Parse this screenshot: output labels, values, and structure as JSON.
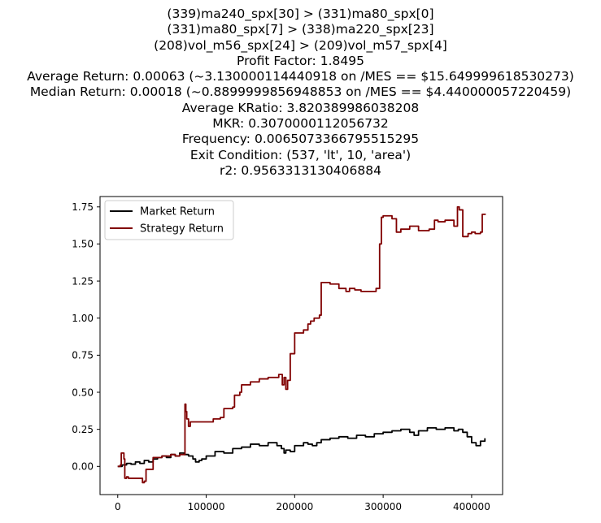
{
  "chart_data": {
    "type": "line",
    "title_lines": [
      "(339)ma240_spx[30] > (331)ma80_spx[0]",
      "(331)ma80_spx[7] > (338)ma220_spx[23]",
      "(208)vol_m56_spx[24] > (209)vol_m57_spx[4]",
      "Profit Factor: 1.8495",
      "Average Return: 0.00063 (~3.130000114440918 on /MES == $15.649999618530273)",
      "Median Return: 0.00018 (~0.8899999856948853 on /MES == $4.440000057220459)",
      "Average KRatio: 3.820389986038208",
      "MKR: 0.3070000112056732",
      "Frequency: 0.0065073366795515295",
      "Exit Condition: (537, 'lt', 10, 'area')",
      "r2: 0.9563313130406884"
    ],
    "xlim": [
      -20000,
      435000
    ],
    "ylim": [
      -0.19,
      1.82
    ],
    "x_ticks": [
      0,
      100000,
      200000,
      300000,
      400000
    ],
    "x_tick_labels": [
      "0",
      "100000",
      "200000",
      "300000",
      "400000"
    ],
    "y_ticks": [
      0.0,
      0.25,
      0.5,
      0.75,
      1.0,
      1.25,
      1.5,
      1.75
    ],
    "y_tick_labels": [
      "0.00",
      "0.25",
      "0.50",
      "0.75",
      "1.00",
      "1.25",
      "1.50",
      "1.75"
    ],
    "grid": false,
    "legend": "top-left",
    "series": [
      {
        "name": "Market Return",
        "color": "#000000",
        "x": [
          0,
          5000,
          10000,
          15000,
          20000,
          25000,
          30000,
          35000,
          40000,
          45000,
          50000,
          55000,
          60000,
          65000,
          70000,
          75000,
          80000,
          85000,
          88000,
          92000,
          95000,
          100000,
          110000,
          120000,
          130000,
          140000,
          150000,
          160000,
          170000,
          180000,
          185000,
          188000,
          190000,
          195000,
          200000,
          210000,
          215000,
          220000,
          225000,
          230000,
          240000,
          250000,
          260000,
          270000,
          280000,
          290000,
          300000,
          310000,
          320000,
          330000,
          335000,
          340000,
          350000,
          360000,
          370000,
          380000,
          385000,
          390000,
          395000,
          400000,
          405000,
          410000,
          415000
        ],
        "y": [
          0.0,
          0.01,
          0.02,
          0.015,
          0.03,
          0.02,
          0.04,
          0.03,
          0.05,
          0.06,
          0.07,
          0.06,
          0.08,
          0.07,
          0.09,
          0.08,
          0.07,
          0.05,
          0.03,
          0.04,
          0.05,
          0.07,
          0.1,
          0.09,
          0.12,
          0.13,
          0.15,
          0.14,
          0.16,
          0.14,
          0.12,
          0.09,
          0.11,
          0.1,
          0.14,
          0.16,
          0.15,
          0.14,
          0.16,
          0.18,
          0.19,
          0.2,
          0.19,
          0.21,
          0.2,
          0.22,
          0.23,
          0.24,
          0.25,
          0.23,
          0.21,
          0.24,
          0.26,
          0.25,
          0.26,
          0.24,
          0.25,
          0.23,
          0.2,
          0.16,
          0.14,
          0.17,
          0.19
        ]
      },
      {
        "name": "Strategy Return",
        "color": "#800000",
        "x": [
          0,
          3000,
          4000,
          7000,
          8000,
          10000,
          12000,
          14000,
          20000,
          28000,
          30000,
          32000,
          35000,
          40000,
          45000,
          50000,
          60000,
          65000,
          70000,
          74000,
          76000,
          77000,
          78000,
          80000,
          82000,
          86000,
          90000,
          100000,
          108000,
          110000,
          116000,
          120000,
          130000,
          132000,
          138000,
          140000,
          150000,
          160000,
          170000,
          180000,
          182000,
          186000,
          188000,
          190000,
          192000,
          195000,
          200000,
          210000,
          215000,
          218000,
          222000,
          228000,
          230000,
          234000,
          240000,
          250000,
          258000,
          262000,
          268000,
          275000,
          285000,
          292000,
          296000,
          298000,
          300000,
          310000,
          315000,
          320000,
          330000,
          340000,
          352000,
          358000,
          362000,
          370000,
          376000,
          380000,
          384000,
          386000,
          390000,
          396000,
          400000,
          404000,
          410000,
          412000,
          416000
        ],
        "y": [
          0.0,
          0.01,
          0.09,
          0.05,
          -0.08,
          -0.07,
          -0.08,
          -0.08,
          -0.08,
          -0.11,
          -0.1,
          -0.02,
          -0.02,
          0.06,
          0.06,
          0.07,
          0.08,
          0.07,
          0.08,
          0.08,
          0.42,
          0.37,
          0.32,
          0.27,
          0.3,
          0.3,
          0.3,
          0.3,
          0.32,
          0.32,
          0.33,
          0.39,
          0.4,
          0.48,
          0.5,
          0.55,
          0.57,
          0.59,
          0.6,
          0.6,
          0.62,
          0.55,
          0.6,
          0.52,
          0.58,
          0.76,
          0.9,
          0.92,
          0.96,
          0.98,
          1.0,
          1.02,
          1.24,
          1.24,
          1.23,
          1.2,
          1.18,
          1.2,
          1.19,
          1.18,
          1.18,
          1.2,
          1.5,
          1.68,
          1.69,
          1.67,
          1.58,
          1.6,
          1.62,
          1.59,
          1.6,
          1.66,
          1.65,
          1.66,
          1.66,
          1.62,
          1.75,
          1.73,
          1.55,
          1.57,
          1.58,
          1.57,
          1.58,
          1.7,
          1.7
        ]
      }
    ]
  }
}
